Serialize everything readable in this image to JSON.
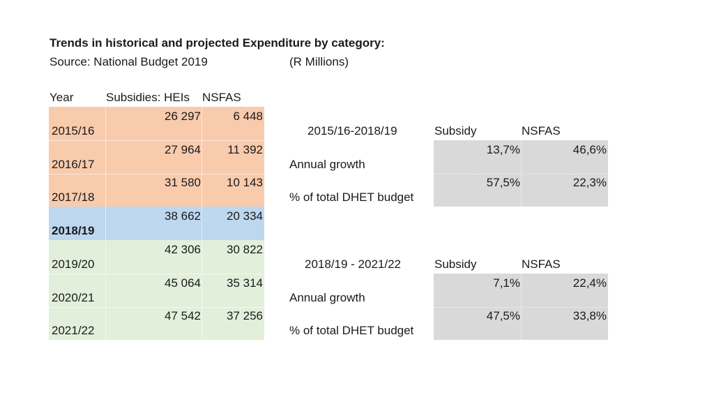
{
  "title": "Trends in historical and projected Expenditure by category:",
  "source": "Source: National Budget 2019",
  "units": "(R Millions)",
  "left_table": {
    "headers": {
      "year": "Year",
      "subsidies": "Subsidies: HEIs",
      "nsfas": "NSFAS"
    },
    "rows": [
      {
        "year": "2015/16",
        "subsidies": "26 297",
        "nsfas": "6 448"
      },
      {
        "year": "2016/17",
        "subsidies": "27 964",
        "nsfas": "11 392"
      },
      {
        "year": "2017/18",
        "subsidies": "31 580",
        "nsfas": "10 143"
      },
      {
        "year": "2018/19",
        "subsidies": "38 662",
        "nsfas": "20 334"
      },
      {
        "year": "2019/20",
        "subsidies": "42 306",
        "nsfas": "30 822"
      },
      {
        "year": "2020/21",
        "subsidies": "45 064",
        "nsfas": "35 314"
      },
      {
        "year": "2021/22",
        "subsidies": "47 542",
        "nsfas": "37 256"
      }
    ],
    "colors": {
      "historical": "#f8cbad",
      "current": "#bdd7ee",
      "projected": "#e2efda"
    }
  },
  "summary_tables": [
    {
      "period": "2015/16-2018/19",
      "col_subsidy": "Subsidy",
      "col_nsfas": "NSFAS",
      "rows": [
        {
          "label": "Annual growth",
          "subsidy": "13,7%",
          "nsfas": "46,6%"
        },
        {
          "label": "% of total DHET budget",
          "subsidy": "57,5%",
          "nsfas": "22,3%"
        }
      ]
    },
    {
      "period": "2018/19 - 2021/22",
      "col_subsidy": "Subsidy",
      "col_nsfas": "NSFAS",
      "rows": [
        {
          "label": "Annual growth",
          "subsidy": "7,1%",
          "nsfas": "22,4%"
        },
        {
          "label": "% of total DHET budget",
          "subsidy": "47,5%",
          "nsfas": "33,8%"
        }
      ]
    }
  ]
}
